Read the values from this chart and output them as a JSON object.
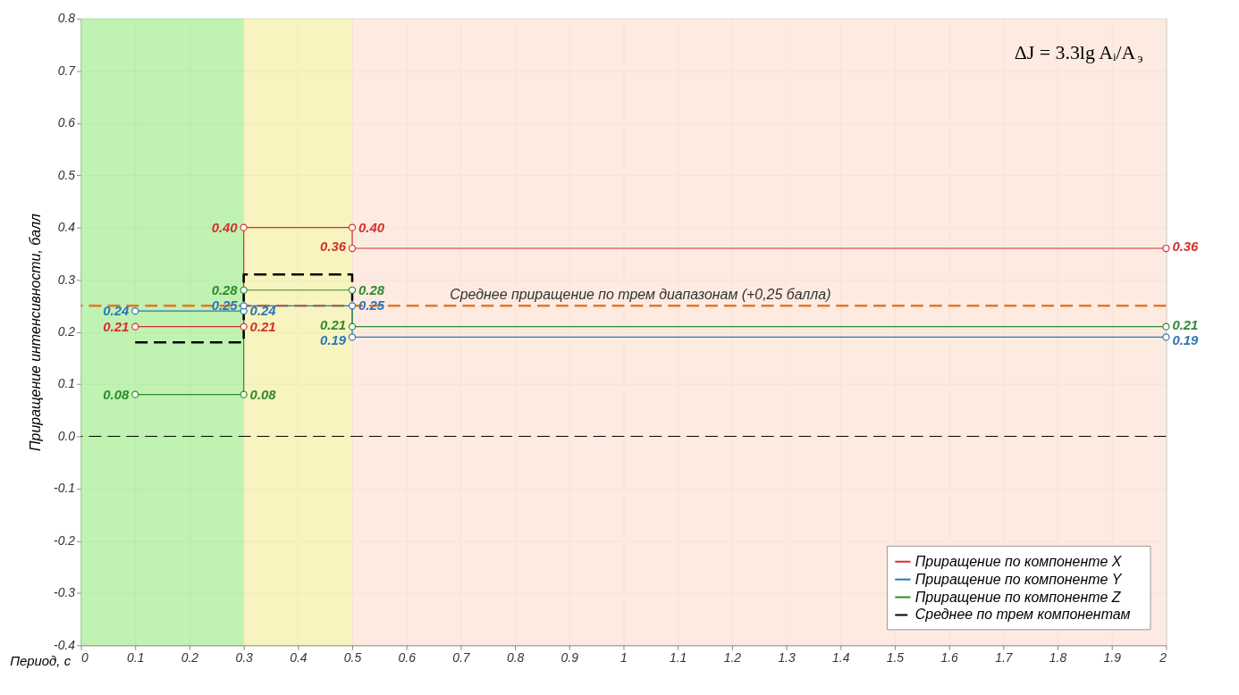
{
  "chart_data": {
    "type": "line",
    "xlabel": "Период, с",
    "ylabel": "Приращение интенсивности,  балл",
    "xlim": [
      0,
      2
    ],
    "xticks": [
      0,
      0.1,
      0.2,
      0.3,
      0.4,
      0.5,
      0.6,
      0.7,
      0.8,
      0.9,
      1,
      1.1,
      1.2,
      1.3,
      1.4,
      1.5,
      1.6,
      1.7,
      1.8,
      1.9,
      2
    ],
    "ylim": [
      -0.4,
      0.8
    ],
    "yticks": [
      -0.4,
      -0.3,
      -0.2,
      -0.1,
      {
        "value": 0,
        "label": "0.0"
      },
      0.1,
      0.2,
      0.3,
      0.4,
      0.5,
      0.6,
      0.7,
      0.8
    ],
    "grid": true,
    "legend": "bottom right",
    "marker": "circle",
    "series": [
      {
        "name": "Приращение  по  компоненте  X",
        "color": "#d62f2f",
        "x": [
          0.1,
          0.3,
          0.3,
          0.5,
          0.5,
          2
        ],
        "values": [
          0.21,
          0.21,
          0.4,
          0.4,
          0.36,
          0.36
        ],
        "value_labels": [
          "0.21",
          "0.21",
          "0.40",
          "0.40",
          "0.36",
          "0.36"
        ]
      },
      {
        "name": "Приращение  по  компоненте  Y",
        "color": "#2e75b6",
        "x": [
          0.1,
          0.3,
          0.3,
          0.5,
          0.5,
          2
        ],
        "values": [
          0.24,
          0.24,
          0.25,
          0.25,
          0.19,
          0.19
        ],
        "value_labels": [
          "0.24",
          "0.24",
          "0.25",
          "0.25",
          "0.19",
          "0.19"
        ]
      },
      {
        "name": "Приращение  по  компоненте  Z",
        "color": "#2e8b2e",
        "x": [
          0.1,
          0.3,
          0.3,
          0.5,
          0.5,
          2
        ],
        "values": [
          0.08,
          0.08,
          0.28,
          0.28,
          0.21,
          0.21
        ],
        "value_labels": [
          "0.08",
          "0.08",
          "0.28",
          "0.28",
          "0.21",
          "0.21"
        ]
      },
      {
        "name": "Среднее  по  трем  компонентам",
        "color": "#000000",
        "marker": "none",
        "line_style": "dashed",
        "x": [
          0.1,
          0.3,
          0.3,
          0.5,
          0.5
        ],
        "values": [
          0.18,
          0.18,
          0.31,
          0.31,
          0.25
        ]
      }
    ],
    "ref_lines": [
      {
        "axis": "y",
        "value": 0.25,
        "label": "Среднее  приращение  по  трем  диапазонам  (+0,25  балла)",
        "color": "#e87722",
        "line_style": "dashed"
      },
      {
        "axis": "y",
        "value": 0,
        "color": "#000000",
        "line_style": "dashed"
      }
    ],
    "bands": [
      {
        "axis": "x",
        "from": 0,
        "to": 0.3,
        "color": "#b5f0a5"
      },
      {
        "axis": "x",
        "from": 0.3,
        "to": 0.5,
        "color": "#f6f2b4"
      },
      {
        "axis": "x",
        "from": 0.5,
        "to": 2,
        "color": "#fde8dc"
      }
    ],
    "annotations": [
      "ΔJ = 3.3lg Aᵢ/A$_{э}$"
    ]
  }
}
